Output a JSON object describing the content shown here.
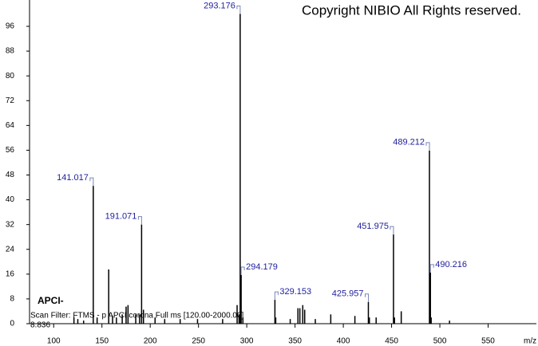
{
  "chart_data": {
    "type": "spectrum",
    "copyright": "Copyright NIBIO All Rights reserved.",
    "ionization": "APCI-",
    "scan_filter": "Scan Filter: FTMS - p APCI corona Full ms [120.00-2000.00]",
    "retention_time": "8.836",
    "xlabel": "m/z",
    "x": [
      141.017,
      191.071,
      293.176,
      294.179,
      329.153,
      425.957,
      451.975,
      489.212,
      490.216
    ],
    "values": [
      44.5,
      32,
      100,
      15.7,
      7.7,
      7,
      28.8,
      55.9,
      16.5
    ],
    "minor_x": [
      121,
      125,
      131,
      145,
      157,
      161,
      165,
      171,
      175,
      177,
      185,
      189,
      193,
      205,
      215,
      231,
      249,
      275,
      290,
      292,
      296,
      330,
      345,
      353,
      355,
      358,
      360,
      371,
      387,
      412,
      427,
      434,
      453,
      460,
      491,
      510
    ],
    "minor_values": [
      2,
      1.5,
      1,
      2,
      17.5,
      2.5,
      2,
      3,
      5.5,
      6,
      3,
      3,
      4.5,
      2,
      1.5,
      1.5,
      1.5,
      1.5,
      6,
      3,
      2,
      2,
      1.5,
      5,
      5,
      6,
      4.5,
      1.5,
      3,
      2.5,
      2,
      2,
      2,
      4,
      2,
      1
    ],
    "color": "#000000",
    "xlim": [
      75,
      600
    ],
    "xticks": [
      100,
      150,
      200,
      250,
      300,
      350,
      400,
      450,
      500,
      550
    ],
    "ylim": [
      0,
      104.5
    ],
    "yticks": [
      0,
      8,
      16,
      24,
      32,
      40,
      48,
      56,
      64,
      72,
      80,
      88,
      96
    ]
  }
}
